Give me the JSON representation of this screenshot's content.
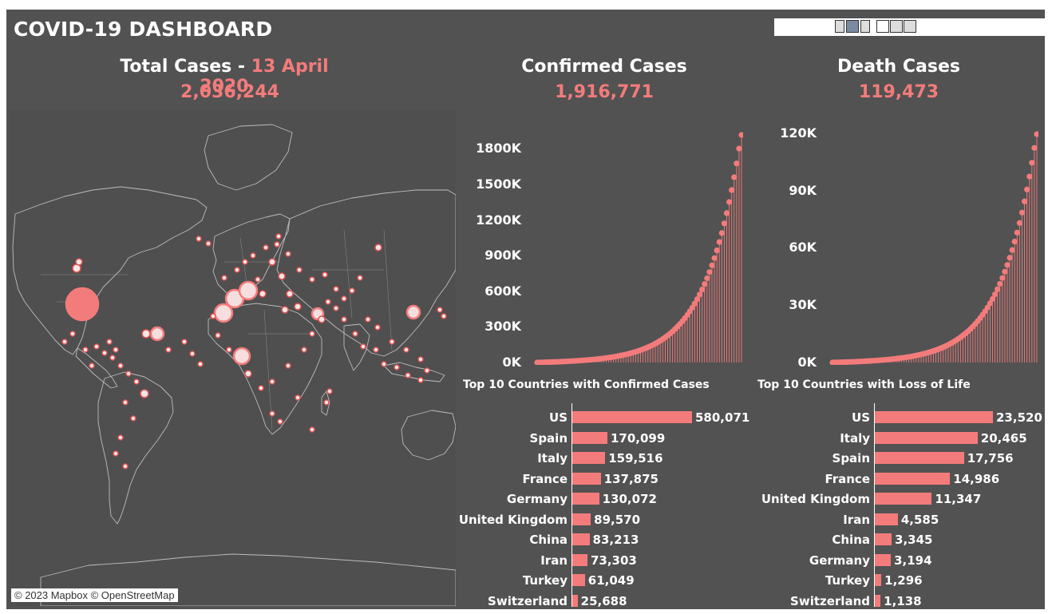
{
  "dashboard": {
    "title": "COVID-19 DASHBOARD"
  },
  "total": {
    "label": "Total Cases - ",
    "date": "13 April 2020",
    "value": "2,036,244"
  },
  "confirmed": {
    "label": "Confirmed Cases",
    "value": "1,916,771"
  },
  "deaths": {
    "label": "Death Cases",
    "value": "119,473"
  },
  "map": {
    "attribution": "© 2023 Mapbox © OpenStreetMap"
  },
  "colors": {
    "accent": "#f47b7b",
    "background": "#525252"
  },
  "chart_data": [
    {
      "type": "line",
      "title": "Confirmed Cases",
      "y_ticks": [
        "1800K",
        "1500K",
        "1200K",
        "900K",
        "600K",
        "300K",
        "0K"
      ],
      "y_tick_values": [
        1800000,
        1500000,
        1200000,
        900000,
        600000,
        300000,
        0
      ],
      "ylim": [
        0,
        1916771
      ],
      "last_value": 1916771
    },
    {
      "type": "line",
      "title": "Death Cases",
      "y_ticks": [
        "120K",
        "90K",
        "60K",
        "30K",
        "0K"
      ],
      "y_tick_values": [
        120000,
        90000,
        60000,
        30000,
        0
      ],
      "ylim": [
        0,
        119473
      ],
      "last_value": 119473
    },
    {
      "type": "bar",
      "title": "Top 10 Countries with Confirmed Cases",
      "categories": [
        "US",
        "Spain",
        "Italy",
        "France",
        "Germany",
        "United Kingdom",
        "China",
        "Iran",
        "Turkey",
        "Switzerland"
      ],
      "values": [
        580071,
        170099,
        159516,
        137875,
        130072,
        89570,
        83213,
        73303,
        61049,
        25688
      ],
      "labels": [
        "580,071",
        "170,099",
        "159,516",
        "137,875",
        "130,072",
        "89,570",
        "83,213",
        "73,303",
        "61,049",
        "25,688"
      ]
    },
    {
      "type": "bar",
      "title": "Top 10 Countries with Loss of Life",
      "categories": [
        "US",
        "Italy",
        "Spain",
        "France",
        "United Kingdom",
        "Iran",
        "China",
        "Germany",
        "Turkey",
        "Switzerland"
      ],
      "values": [
        23520,
        20465,
        17756,
        14986,
        11347,
        4585,
        3345,
        3194,
        1296,
        1138
      ],
      "labels": [
        "23,520",
        "20,465",
        "17,756",
        "14,986",
        "11,347",
        "4,585",
        "3,345",
        "3,194",
        "1,296",
        "1,138"
      ]
    }
  ]
}
